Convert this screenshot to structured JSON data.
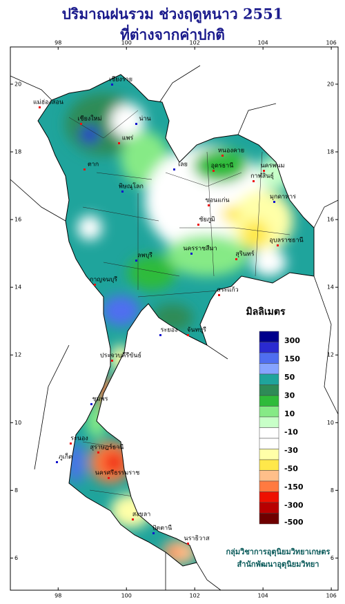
{
  "title": "ปริมาณฝนรวม ช่วงฤดูหนาว 2551",
  "subtitle": "ที่ต่างจากค่าปกติ",
  "map": {
    "xlim": [
      96.6,
      106.2
    ],
    "ylim": [
      5.05,
      21.1
    ],
    "xticks": [
      98,
      100,
      102,
      104,
      106
    ],
    "yticks": [
      20,
      18,
      16,
      14,
      12,
      10,
      8,
      6
    ]
  },
  "provinces": [
    "เชียงราย",
    "แม่ฮ่องสอน",
    "เชียงใหม่",
    "น่าน",
    "แพร่",
    "ตาก",
    "พิษณุโลก",
    "หนองคาย",
    "อุดรธานี",
    "เลย",
    "ขอนแก่น",
    "นครพนม",
    "มุกดาหาร",
    "กาฬสินธุ์",
    "ชัยภูมิ",
    "นครราชสีมา",
    "อุบลราชธานี",
    "สุรินทร์",
    "ลพบุรี",
    "กาญจนบุรี",
    "สระแก้ว",
    "ระยอง",
    "จันทบุรี",
    "ประจวบคีรีขันธ์",
    "ชุมพร",
    "ระนอง",
    "สุราษฎร์ธานี",
    "ภูเก็ต",
    "นครศรีธรรมราช",
    "สงขลา",
    "ปัตตานี",
    "นราธิวาส"
  ],
  "legend": {
    "title": "มิลลิเมตร",
    "colors": [
      "#00008b",
      "#2a2ad0",
      "#4f6ef0",
      "#86a4ff",
      "#1fa49c",
      "#2e8b57",
      "#2fbb3a",
      "#86ea86",
      "#c8ffc8",
      "#ffffff",
      "#ffffff",
      "#ffffa8",
      "#ffe84a",
      "#ffbf8a",
      "#ff7a40",
      "#ee1100",
      "#b80000",
      "#6e0000"
    ],
    "ticks": [
      300,
      150,
      50,
      30,
      10,
      -10,
      -30,
      -50,
      -150,
      -300,
      -500
    ]
  },
  "credits": [
    "กลุ่มวิชาการอุตุนิยมวิทยาเกษตร",
    "สำนักพัฒนาอุตุนิยมวิทยา"
  ]
}
